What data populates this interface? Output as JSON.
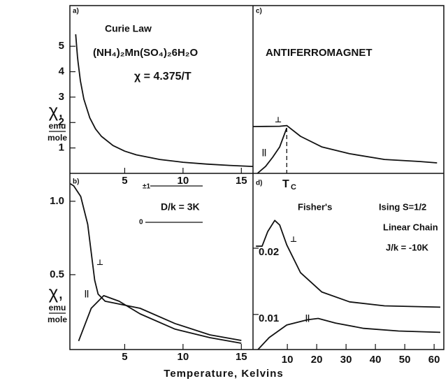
{
  "chart_data": [
    {
      "type": "line",
      "xlim": [
        0.3,
        16
      ],
      "ylim": [
        0,
        6.6
      ],
      "xticks": [
        5,
        10,
        15
      ],
      "yticks": [
        1,
        2,
        3,
        4,
        5
      ],
      "ylabel": [
        "χ,",
        "emu",
        "mole"
      ],
      "annotations": [
        "a)",
        "Curie Law",
        "(NH₄)₂Mn(SO₄)₂6H₂O",
        "χ = 4.375/T"
      ],
      "series": [
        {
          "color": "#111",
          "x": [
            0.8,
            0.95,
            1,
            1.2,
            1.5,
            2,
            2.5,
            3,
            4,
            5,
            6,
            8,
            10,
            12,
            14,
            16
          ],
          "values": [
            5.47,
            4.605,
            4.375,
            3.646,
            2.917,
            2.188,
            1.75,
            1.458,
            1.094,
            0.875,
            0.729,
            0.547,
            0.4375,
            0.365,
            0.3125,
            0.273
          ]
        }
      ]
    },
    {
      "type": "line",
      "xlim": [
        0.3,
        16
      ],
      "ylim": [
        -0.01,
        1.19
      ],
      "xticks": [
        5,
        10,
        15
      ],
      "yticks": [
        {
          "value": 1.0,
          "label": "1.0"
        },
        {
          "value": 0.5,
          "label": "0.5"
        }
      ],
      "ylabel": [
        "χ,",
        "emu",
        "mole"
      ],
      "annotations": [
        "b)",
        "±1",
        "0",
        "D/k = 3K"
      ],
      "series": [
        {
          "name": "⊥",
          "color": "#111",
          "x": [
            0.33,
            0.63,
            1.23,
            1.83,
            2.13,
            2.43,
            2.72,
            3.32,
            4.22,
            6.32,
            9.31,
            12.3,
            15.0
          ],
          "values": [
            1.12,
            1.105,
            1.033,
            0.843,
            0.652,
            0.462,
            0.367,
            0.319,
            0.305,
            0.271,
            0.167,
            0.09,
            0.052
          ]
        },
        {
          "name": "||",
          "color": "#111",
          "x": [
            1.05,
            2.13,
            3.2,
            4.52,
            6.32,
            9.31,
            12.3,
            15.0
          ],
          "values": [
            0.048,
            0.271,
            0.357,
            0.319,
            0.233,
            0.129,
            0.071,
            0.033
          ]
        }
      ]
    },
    {
      "type": "line",
      "xlim": [
        -1.7,
        63.3
      ],
      "ylim": [
        0,
        1
      ],
      "vline": 9.8,
      "annotations": [
        "c)",
        "ANTIFERROMAGNET",
        "T",
        "C"
      ],
      "series": [
        {
          "name": "⊥",
          "color": "#111",
          "x": [
            -1.7,
            7.4,
            9.8,
            14.5,
            21.7,
            31.2,
            43.1,
            55,
            61
          ],
          "values": [
            0.279,
            0.281,
            0.285,
            0.221,
            0.158,
            0.117,
            0.083,
            0.071,
            0.0625
          ]
        },
        {
          "name": "||",
          "color": "#111",
          "x": [
            -0.2,
            2.6,
            5,
            7.4,
            9.8
          ],
          "values": [
            0,
            0.042,
            0.096,
            0.158,
            0.271
          ]
        }
      ]
    },
    {
      "type": "line",
      "xlim": [
        -1.7,
        63.3
      ],
      "ylim": [
        0.0047,
        0.0313
      ],
      "xticks": [
        10,
        20,
        30,
        40,
        50,
        60
      ],
      "yticks": [
        0.02,
        0.01
      ],
      "annotations": [
        "d)",
        "Fisher's",
        "Ising S=1/2",
        "Linear Chain",
        "J/k = -10K"
      ],
      "xlabel": "Temperature, Kelvins",
      "series": [
        {
          "name": "⊥",
          "color": "#111",
          "x": [
            -0.7,
            1.4,
            3.3,
            5.7,
            7.4,
            9.8,
            14.5,
            21.7,
            31.2,
            43.1,
            62.1
          ],
          "values": [
            0.0203,
            0.0203,
            0.0225,
            0.0242,
            0.0235,
            0.0205,
            0.0163,
            0.0134,
            0.0119,
            0.0113,
            0.0111
          ]
        },
        {
          "name": "||",
          "color": "#111",
          "x": [
            0,
            3.8,
            9.8,
            16.9,
            20.5,
            26.4,
            36,
            47.9,
            62.1
          ],
          "values": [
            0.0047,
            0.0065,
            0.0084,
            0.0092,
            0.0094,
            0.0087,
            0.0079,
            0.0075,
            0.0073
          ]
        }
      ]
    }
  ]
}
